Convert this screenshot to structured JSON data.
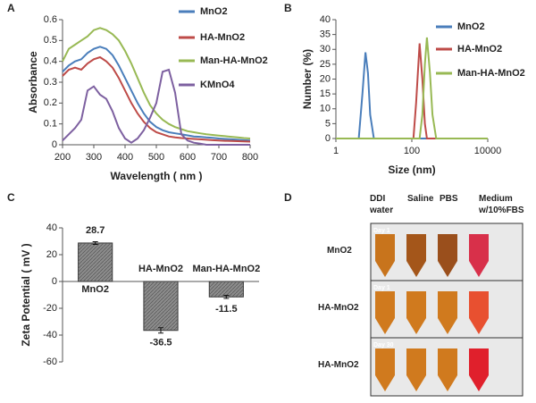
{
  "chart_data": [
    {
      "type": "line",
      "panel": "A",
      "xlabel": "Wavelength ( nm )",
      "ylabel": "Absorbance",
      "x": [
        200,
        220,
        240,
        260,
        280,
        300,
        320,
        340,
        360,
        380,
        400,
        420,
        440,
        460,
        480,
        500,
        520,
        540,
        560,
        580,
        600,
        620,
        640,
        660,
        680,
        700,
        720,
        740,
        760,
        780,
        800
      ],
      "series": [
        {
          "name": "MnO2",
          "color": "#4a7ebb",
          "values": [
            0.35,
            0.38,
            0.4,
            0.41,
            0.44,
            0.46,
            0.47,
            0.46,
            0.43,
            0.38,
            0.32,
            0.26,
            0.2,
            0.15,
            0.11,
            0.085,
            0.07,
            0.06,
            0.055,
            0.05,
            0.045,
            0.04,
            0.038,
            0.035,
            0.033,
            0.03,
            0.028,
            0.026,
            0.024,
            0.022,
            0.02
          ]
        },
        {
          "name": "HA-MnO2",
          "color": "#be4b48",
          "values": [
            0.33,
            0.36,
            0.37,
            0.36,
            0.39,
            0.41,
            0.42,
            0.4,
            0.37,
            0.32,
            0.26,
            0.2,
            0.15,
            0.11,
            0.08,
            0.06,
            0.05,
            0.04,
            0.035,
            0.032,
            0.03,
            0.028,
            0.026,
            0.024,
            0.022,
            0.02,
            0.019,
            0.018,
            0.017,
            0.016,
            0.015
          ]
        },
        {
          "name": "Man-HA-MnO2",
          "color": "#98b954",
          "values": [
            0.4,
            0.46,
            0.48,
            0.5,
            0.52,
            0.55,
            0.56,
            0.55,
            0.53,
            0.5,
            0.45,
            0.39,
            0.32,
            0.25,
            0.19,
            0.15,
            0.12,
            0.1,
            0.085,
            0.075,
            0.065,
            0.06,
            0.055,
            0.05,
            0.047,
            0.044,
            0.041,
            0.038,
            0.035,
            0.032,
            0.03
          ]
        },
        {
          "name": "KMnO4",
          "color": "#7d60a0",
          "values": [
            0.02,
            0.05,
            0.08,
            0.12,
            0.26,
            0.28,
            0.24,
            0.22,
            0.16,
            0.08,
            0.03,
            0.01,
            0.03,
            0.07,
            0.13,
            0.2,
            0.35,
            0.36,
            0.25,
            0.05,
            0.02,
            0.01,
            0.005,
            0,
            0,
            0,
            0,
            0,
            0,
            0,
            0
          ]
        }
      ],
      "xlim": [
        200,
        800
      ],
      "xticks": [
        200,
        300,
        400,
        500,
        600,
        700,
        800
      ],
      "ylim": [
        0,
        0.6
      ],
      "yticks": [
        0,
        0.1,
        0.2,
        0.3,
        0.4,
        0.5,
        0.6
      ],
      "legend": "right"
    },
    {
      "type": "line",
      "panel": "B",
      "xlabel": "Size (nm)",
      "ylabel": "Number (%)",
      "xscale": "log",
      "x": [
        1,
        4,
        5,
        6,
        7,
        8,
        10,
        110,
        130,
        160,
        190,
        220,
        250,
        300,
        350,
        440,
        10000
      ],
      "series": [
        {
          "name": "MnO2",
          "color": "#4a7ebb",
          "values": [
            0,
            0,
            15,
            29,
            22,
            8,
            0,
            0,
            0,
            0,
            0,
            0,
            0,
            0,
            0,
            0,
            0
          ]
        },
        {
          "name": "HA-MnO2",
          "color": "#be4b48",
          "values": [
            0,
            0,
            0,
            0,
            0,
            0,
            0,
            0,
            12,
            32,
            20,
            5,
            0,
            0,
            0,
            0,
            0
          ]
        },
        {
          "name": "Man-HA-MnO2",
          "color": "#98b954",
          "values": [
            0,
            0,
            0,
            0,
            0,
            0,
            0,
            0,
            0,
            0,
            8,
            25,
            34,
            22,
            8,
            0,
            0
          ]
        }
      ],
      "xlim": [
        1,
        10000
      ],
      "xticks": [
        1,
        100,
        10000
      ],
      "ylim": [
        0,
        40
      ],
      "yticks": [
        0,
        5,
        10,
        15,
        20,
        25,
        30,
        35,
        40
      ],
      "legend": "right"
    },
    {
      "type": "bar",
      "panel": "C",
      "ylabel": "Zeta Potential ( mV )",
      "categories": [
        "MnO2",
        "HA-MnO2",
        "Man-HA-MnO2"
      ],
      "values": [
        28.7,
        -36.5,
        -11.5
      ],
      "errors": [
        1,
        2,
        1.2
      ],
      "color": "#8c8c8c",
      "ylim": [
        -60,
        40
      ],
      "yticks": [
        -60,
        -40,
        -20,
        0,
        20,
        40
      ]
    }
  ],
  "panel_d": {
    "letter": "D",
    "column_labels": [
      "DDI water",
      "Saline",
      "PBS",
      "Medium w/10%FBS"
    ],
    "row_labels": [
      "MnO2",
      "HA-MnO2",
      "HA-MnO2"
    ],
    "day_labels": [
      "Day 1",
      "Day 1",
      "Day 30"
    ]
  }
}
